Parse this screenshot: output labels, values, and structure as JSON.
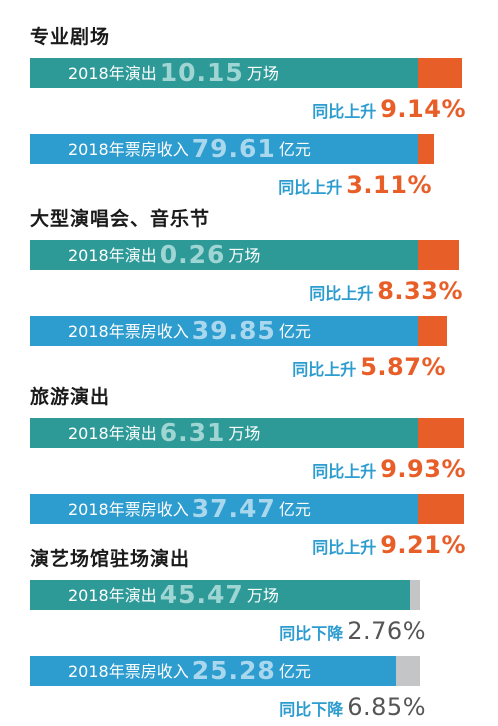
{
  "colors": {
    "teal": "#2e9a98",
    "blue": "#2d9ccf",
    "orange": "#e85e28",
    "gray": "#c3c5c7",
    "value_teal": "#9fd6d4",
    "value_blue": "#a9d8ee",
    "change_label": "#2d9ccf",
    "change_up": "#e85e28",
    "change_down": "#555555"
  },
  "chart_data": {
    "type": "bar",
    "unit_note": "",
    "sections": [
      {
        "title": "专业剧场",
        "items": [
          {
            "prefix": "2018年演出",
            "value": "10.15",
            "unit": "万场",
            "change_label": "同比上升",
            "change": "9.14%",
            "direction": "up",
            "color": "teal"
          },
          {
            "prefix": "2018年票房收入",
            "value": "79.61",
            "unit": "亿元",
            "change_label": "同比上升",
            "change": "3.11%",
            "direction": "up",
            "color": "blue"
          }
        ]
      },
      {
        "title": "大型演唱会、音乐节",
        "items": [
          {
            "prefix": "2018年演出",
            "value": "0.26",
            "unit": "万场",
            "change_label": "同比上升",
            "change": "8.33%",
            "direction": "up",
            "color": "teal"
          },
          {
            "prefix": "2018年票房收入",
            "value": "39.85",
            "unit": "亿元",
            "change_label": "同比上升",
            "change": "5.87%",
            "direction": "up",
            "color": "blue"
          }
        ]
      },
      {
        "title": "旅游演出",
        "items": [
          {
            "prefix": "2018年演出",
            "value": "6.31",
            "unit": "万场",
            "change_label": "同比上升",
            "change": "9.93%",
            "direction": "up",
            "color": "teal"
          },
          {
            "prefix": "2018年票房收入",
            "value": "37.47",
            "unit": "亿元",
            "change_label": "同比上升",
            "change": "9.21%",
            "direction": "up",
            "color": "blue"
          }
        ]
      },
      {
        "title": "演艺场馆驻场演出",
        "items": [
          {
            "prefix": "2018年演出",
            "value": "45.47",
            "unit": "万场",
            "change_label": "同比下降",
            "change": "2.76%",
            "direction": "down",
            "color": "teal"
          },
          {
            "prefix": "2018年票房收入",
            "value": "25.28",
            "unit": "亿元",
            "change_label": "同比下降",
            "change": "6.85%",
            "direction": "down",
            "color": "blue"
          }
        ]
      }
    ]
  }
}
